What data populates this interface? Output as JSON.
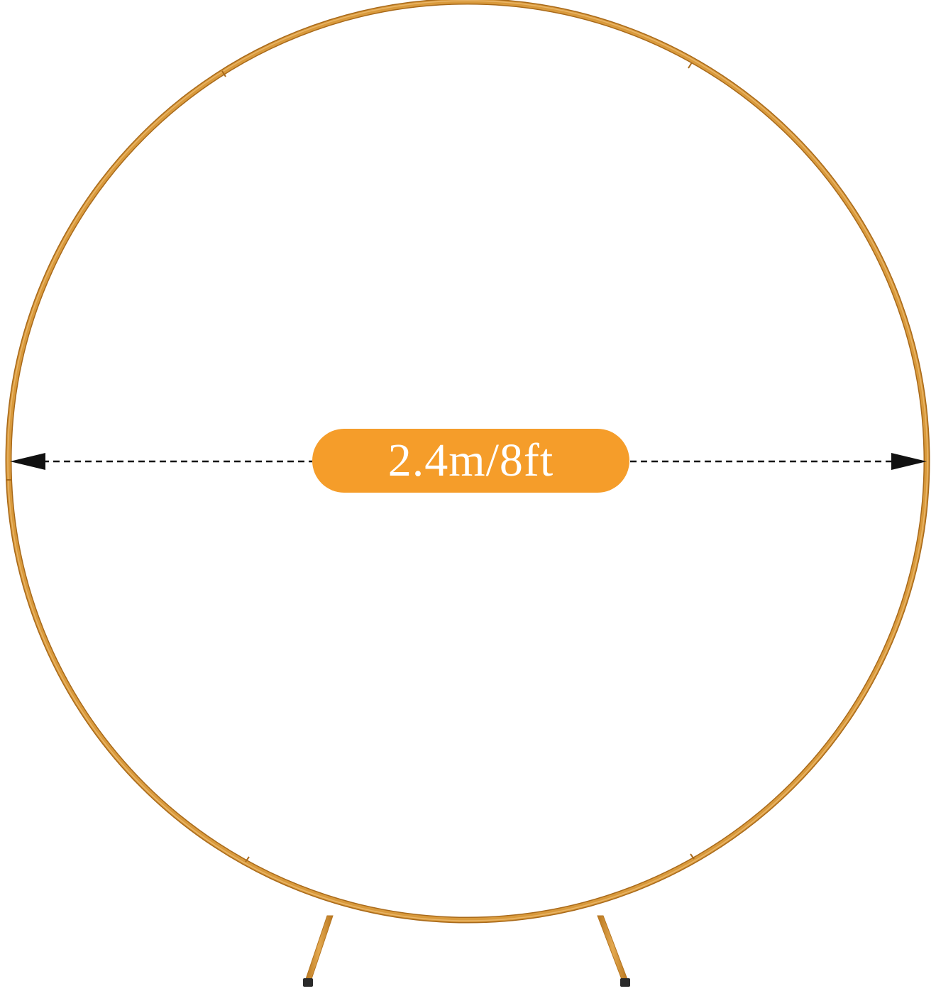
{
  "product": {
    "name": "round-arch-backdrop-stand",
    "frame_color": "#d99a3c",
    "background_color": "#ffffff"
  },
  "dimension": {
    "label": "2.4m/8ft",
    "label_background": "#f59d2a",
    "label_text_color": "#ffffff",
    "arrow_color": "#111111"
  }
}
